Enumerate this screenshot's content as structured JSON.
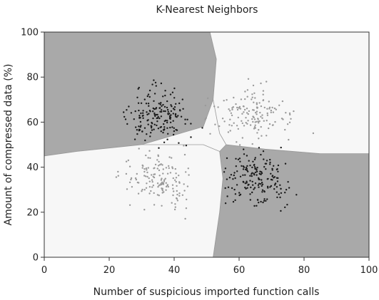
{
  "chart_data": {
    "type": "scatter",
    "title": "K-Nearest Neighbors",
    "xlabel": "Number of suspicious imported function calls",
    "ylabel": "Amount of compressed data (%)",
    "xlim": [
      0,
      100
    ],
    "ylim": [
      0,
      100
    ],
    "x_ticks": [
      0,
      20,
      40,
      60,
      80,
      100
    ],
    "y_ticks": [
      0,
      20,
      40,
      60,
      80,
      100
    ],
    "x_tick_labels": [
      "0",
      "20",
      "40",
      "60",
      "80",
      "100"
    ],
    "y_tick_labels": [
      "0",
      "20",
      "40",
      "60",
      "80",
      "100"
    ],
    "grid": false,
    "legend": "none",
    "colors": {
      "region_dark": "#a9a9a9",
      "region_light": "#f7f7f7",
      "boundary": "#999999",
      "points_dark": "#1a1a1a",
      "points_light": "#9a9a9a"
    },
    "regions": [
      {
        "class": "dark",
        "polygon": [
          [
            0,
            100
          ],
          [
            51,
            100
          ],
          [
            53,
            88
          ],
          [
            52,
            70
          ],
          [
            49,
            58
          ],
          [
            30,
            50
          ],
          [
            10,
            47
          ],
          [
            0,
            45
          ]
        ]
      },
      {
        "class": "dark",
        "polygon": [
          [
            100,
            0
          ],
          [
            100,
            46
          ],
          [
            85,
            46
          ],
          [
            68,
            48
          ],
          [
            56,
            50
          ],
          [
            54,
            47
          ],
          [
            55,
            35
          ],
          [
            54,
            20
          ],
          [
            53,
            10
          ],
          [
            52,
            0
          ]
        ]
      },
      {
        "class": "light",
        "polygon": [
          [
            51,
            100
          ],
          [
            100,
            100
          ],
          [
            100,
            46
          ],
          [
            85,
            46
          ],
          [
            68,
            48
          ],
          [
            56,
            50
          ],
          [
            54,
            55
          ],
          [
            52,
            70
          ],
          [
            53,
            88
          ]
        ]
      },
      {
        "class": "light",
        "polygon": [
          [
            0,
            0
          ],
          [
            52,
            0
          ],
          [
            53,
            10
          ],
          [
            54,
            20
          ],
          [
            55,
            35
          ],
          [
            54,
            47
          ],
          [
            49,
            50
          ],
          [
            30,
            50
          ],
          [
            10,
            47
          ],
          [
            0,
            45
          ]
        ]
      }
    ],
    "clusters": [
      {
        "class": "dark",
        "center": [
          35,
          63
        ],
        "spread": [
          7,
          8
        ],
        "count": 180
      },
      {
        "class": "dark",
        "center": [
          65,
          35
        ],
        "spread": [
          7,
          8
        ],
        "count": 180
      },
      {
        "class": "light",
        "center": [
          35,
          35
        ],
        "spread": [
          8,
          8
        ],
        "count": 150
      },
      {
        "class": "light",
        "center": [
          65,
          63
        ],
        "spread": [
          8,
          8
        ],
        "count": 150
      }
    ]
  }
}
